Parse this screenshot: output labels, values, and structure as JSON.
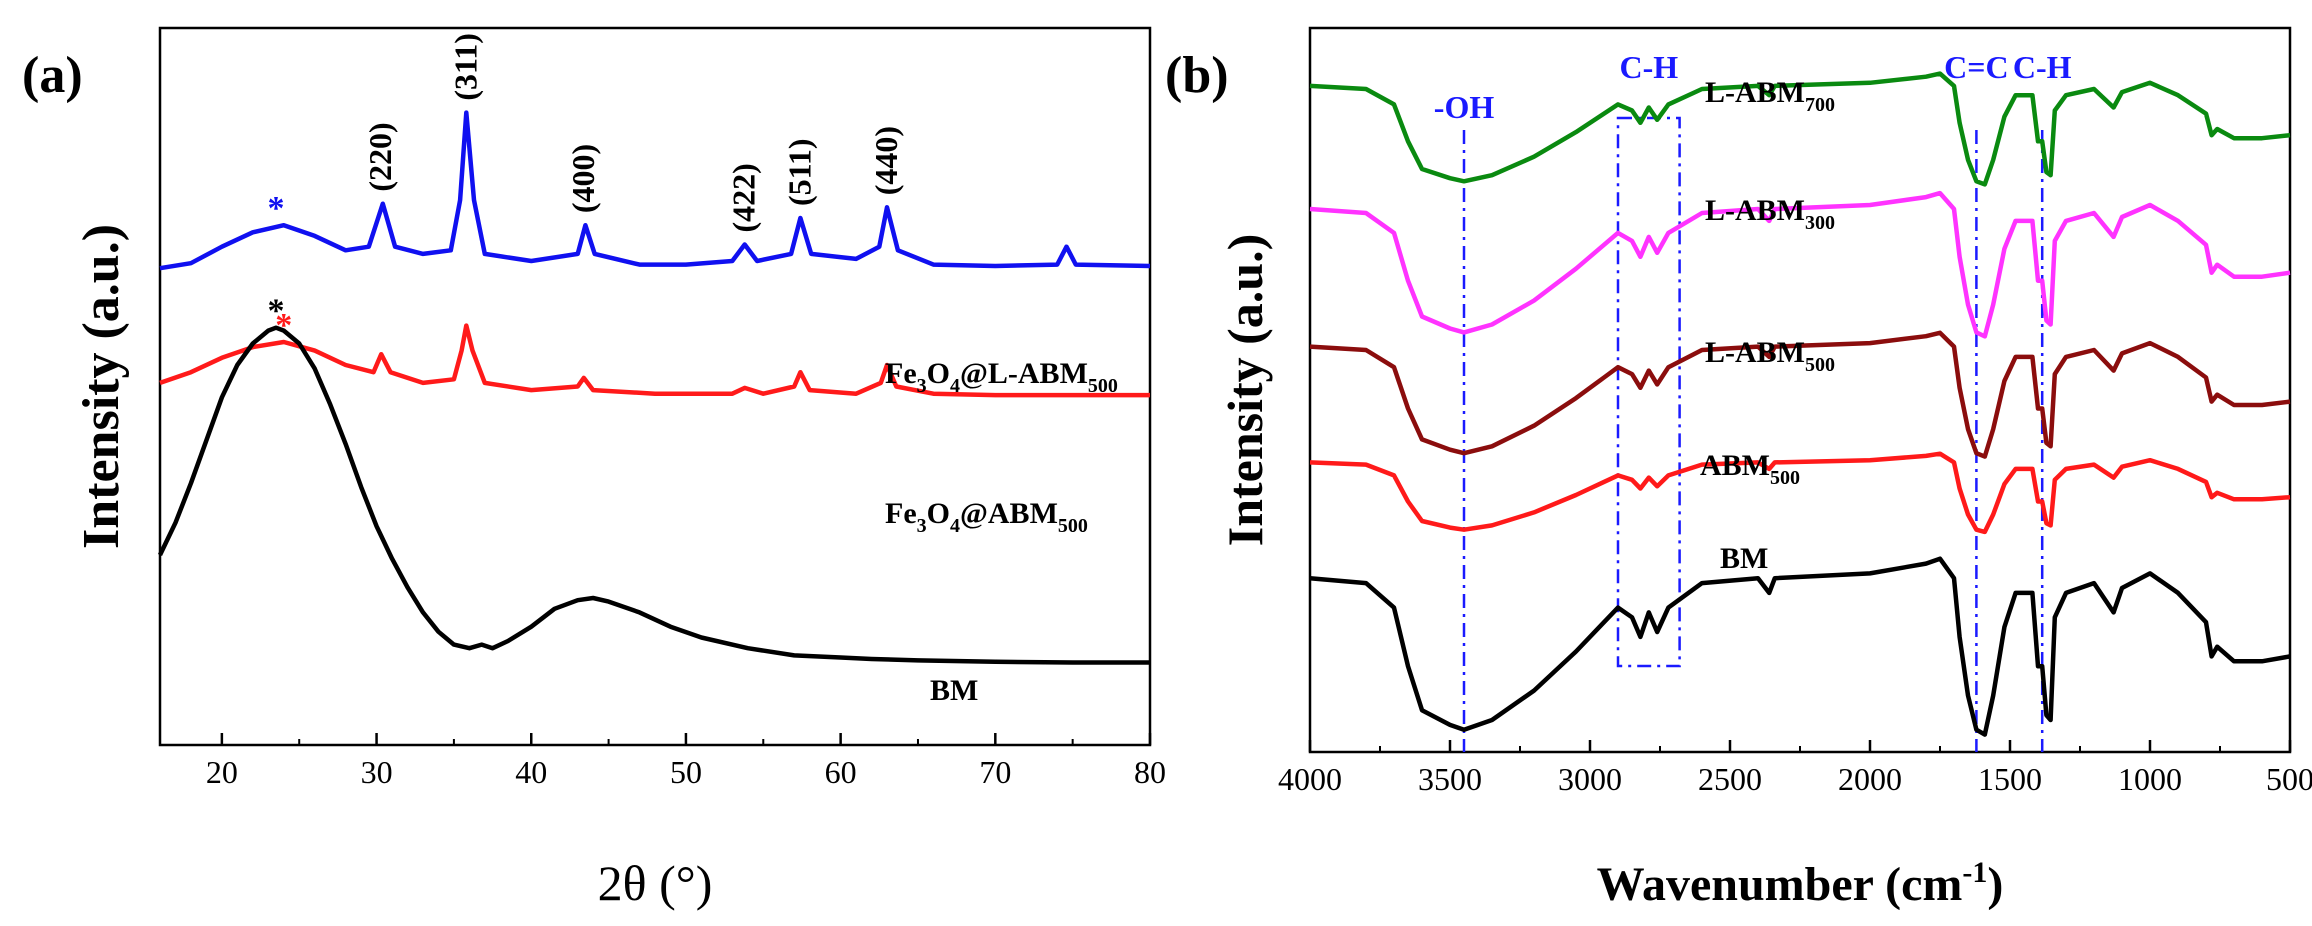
{
  "figure": {
    "panel_a_label": "(a)",
    "panel_b_label": "(b)"
  },
  "colors": {
    "blue": "#1010f0",
    "red": "#ff1a1a",
    "black": "#000000",
    "green": "#0a8a10",
    "magenta": "#ff33ff",
    "darkred": "#8b0d0d",
    "annot": "#1a1aff"
  },
  "chart_data": [
    {
      "type": "line",
      "panel": "(a)",
      "xlabel": "2θ (°)",
      "ylabel": "Intensity (a.u.)",
      "xlim": [
        16,
        80
      ],
      "ylim": [
        0,
        10
      ],
      "xticks": [
        20,
        30,
        40,
        50,
        60,
        70,
        80
      ],
      "peak_labels": [
        {
          "text": "(220)",
          "x": 30.3
        },
        {
          "text": "(311)",
          "x": 35.8
        },
        {
          "text": "(400)",
          "x": 43.4
        },
        {
          "text": "(422)",
          "x": 53.8
        },
        {
          "text": "(511)",
          "x": 57.4
        },
        {
          "text": "(440)",
          "x": 63.0
        }
      ],
      "series": [
        {
          "name": "Fe3O4@L-ABM500",
          "label_main": "Fe",
          "label_sub1": "3",
          "label_mid": "O",
          "label_sub2": "4",
          "label_tail": "@L-ABM",
          "label_sub3": "500",
          "color": "blue",
          "star_x": 23.5,
          "points": [
            [
              16,
              6.65
            ],
            [
              18,
              6.72
            ],
            [
              20,
              6.95
            ],
            [
              22,
              7.15
            ],
            [
              24,
              7.25
            ],
            [
              26,
              7.1
            ],
            [
              28,
              6.9
            ],
            [
              29.5,
              6.95
            ],
            [
              30.4,
              7.55
            ],
            [
              31.2,
              6.95
            ],
            [
              33,
              6.85
            ],
            [
              34.8,
              6.9
            ],
            [
              35.4,
              7.6
            ],
            [
              35.8,
              8.82
            ],
            [
              36.3,
              7.6
            ],
            [
              37,
              6.85
            ],
            [
              40,
              6.75
            ],
            [
              43,
              6.85
            ],
            [
              43.5,
              7.25
            ],
            [
              44.1,
              6.85
            ],
            [
              47,
              6.7
            ],
            [
              50,
              6.7
            ],
            [
              53,
              6.75
            ],
            [
              53.8,
              6.98
            ],
            [
              54.6,
              6.75
            ],
            [
              56.8,
              6.85
            ],
            [
              57.4,
              7.35
            ],
            [
              58.1,
              6.85
            ],
            [
              61,
              6.78
            ],
            [
              62.5,
              6.95
            ],
            [
              63,
              7.5
            ],
            [
              63.7,
              6.9
            ],
            [
              66,
              6.7
            ],
            [
              70,
              6.68
            ],
            [
              74,
              6.7
            ],
            [
              74.6,
              6.95
            ],
            [
              75.2,
              6.7
            ],
            [
              80,
              6.68
            ]
          ]
        },
        {
          "name": "Fe3O4@ABM500",
          "label_main": "Fe",
          "label_sub1": "3",
          "label_mid": "O",
          "label_sub2": "4",
          "label_tail": "@ABM",
          "label_sub3": "500",
          "color": "red",
          "star_x": 24,
          "points": [
            [
              16,
              5.05
            ],
            [
              18,
              5.2
            ],
            [
              20,
              5.4
            ],
            [
              22,
              5.55
            ],
            [
              24,
              5.62
            ],
            [
              26,
              5.5
            ],
            [
              28,
              5.3
            ],
            [
              29.8,
              5.2
            ],
            [
              30.3,
              5.45
            ],
            [
              30.9,
              5.2
            ],
            [
              33,
              5.05
            ],
            [
              35,
              5.1
            ],
            [
              35.5,
              5.5
            ],
            [
              35.8,
              5.85
            ],
            [
              36.2,
              5.5
            ],
            [
              37,
              5.05
            ],
            [
              40,
              4.95
            ],
            [
              43,
              5.0
            ],
            [
              43.4,
              5.12
            ],
            [
              44,
              4.95
            ],
            [
              48,
              4.9
            ],
            [
              53,
              4.9
            ],
            [
              53.8,
              4.98
            ],
            [
              55,
              4.9
            ],
            [
              57,
              5.0
            ],
            [
              57.4,
              5.2
            ],
            [
              58,
              4.95
            ],
            [
              61,
              4.9
            ],
            [
              62.6,
              5.05
            ],
            [
              63,
              5.3
            ],
            [
              63.6,
              5.0
            ],
            [
              66,
              4.9
            ],
            [
              70,
              4.88
            ],
            [
              80,
              4.88
            ]
          ]
        },
        {
          "name": "BM",
          "label_main": "BM",
          "color": "black",
          "star_x": 23.5,
          "points": [
            [
              16,
              2.65
            ],
            [
              17,
              3.1
            ],
            [
              18,
              3.65
            ],
            [
              19,
              4.25
            ],
            [
              20,
              4.85
            ],
            [
              21,
              5.3
            ],
            [
              22,
              5.6
            ],
            [
              23,
              5.78
            ],
            [
              23.5,
              5.82
            ],
            [
              24,
              5.78
            ],
            [
              25,
              5.6
            ],
            [
              26,
              5.25
            ],
            [
              27,
              4.75
            ],
            [
              28,
              4.2
            ],
            [
              29,
              3.6
            ],
            [
              30,
              3.05
            ],
            [
              31,
              2.6
            ],
            [
              32,
              2.2
            ],
            [
              33,
              1.85
            ],
            [
              34,
              1.58
            ],
            [
              35,
              1.4
            ],
            [
              36,
              1.35
            ],
            [
              36.8,
              1.4
            ],
            [
              37.5,
              1.35
            ],
            [
              38.5,
              1.45
            ],
            [
              40,
              1.65
            ],
            [
              41.5,
              1.9
            ],
            [
              43,
              2.02
            ],
            [
              44,
              2.05
            ],
            [
              45,
              2.0
            ],
            [
              47,
              1.85
            ],
            [
              49,
              1.65
            ],
            [
              51,
              1.5
            ],
            [
              54,
              1.35
            ],
            [
              57,
              1.25
            ],
            [
              60,
              1.22
            ],
            [
              62,
              1.2
            ],
            [
              65,
              1.18
            ],
            [
              70,
              1.16
            ],
            [
              75,
              1.15
            ],
            [
              80,
              1.15
            ]
          ]
        }
      ]
    },
    {
      "type": "line",
      "panel": "(b)",
      "xlabel_main": "Wavenumber (cm",
      "xlabel_sup": "-1",
      "xlabel_tail": ")",
      "ylabel": "Intensity (a.u.)",
      "xlim": [
        4000,
        500
      ],
      "ylim": [
        0,
        10
      ],
      "xticks": [
        4000,
        3500,
        3000,
        2500,
        2000,
        1500,
        1000,
        500
      ],
      "annotations": [
        {
          "text": "-OH",
          "x": 3450
        },
        {
          "text": "C-H",
          "x": 2790
        },
        {
          "text": "C=C",
          "x": 1620
        },
        {
          "text": "C-H",
          "x": 1385
        }
      ],
      "dashed_lines_x": [
        3450,
        1620,
        1385
      ],
      "ch_box": {
        "x_from": 2900,
        "x_to": 2680
      },
      "series": [
        {
          "name": "L-ABM700",
          "label_main": "L-ABM",
          "label_sub": "700",
          "color": "green",
          "offset": 9.2
        },
        {
          "name": "L-ABM300",
          "label_main": "L-ABM",
          "label_sub": "300",
          "color": "magenta",
          "offset": 7.5
        },
        {
          "name": "L-ABM500",
          "label_main": "L-ABM",
          "label_sub": "500",
          "color": "darkred",
          "offset": 5.6
        },
        {
          "name": "ABM500",
          "label_main": "ABM",
          "label_sub": "500",
          "color": "red",
          "offset": 4.0
        },
        {
          "name": "BM",
          "label_main": "BM",
          "color": "black",
          "offset": 2.4
        }
      ],
      "profile_points": [
        [
          4000,
          0.0
        ],
        [
          3800,
          -0.05
        ],
        [
          3700,
          -0.3
        ],
        [
          3650,
          -0.9
        ],
        [
          3600,
          -1.35
        ],
        [
          3500,
          -1.5
        ],
        [
          3450,
          -1.55
        ],
        [
          3350,
          -1.45
        ],
        [
          3200,
          -1.15
        ],
        [
          3050,
          -0.75
        ],
        [
          2950,
          -0.45
        ],
        [
          2900,
          -0.3
        ],
        [
          2850,
          -0.4
        ],
        [
          2820,
          -0.6
        ],
        [
          2790,
          -0.35
        ],
        [
          2760,
          -0.55
        ],
        [
          2720,
          -0.3
        ],
        [
          2600,
          -0.05
        ],
        [
          2400,
          0.0
        ],
        [
          2360,
          -0.15
        ],
        [
          2340,
          0.0
        ],
        [
          2000,
          0.05
        ],
        [
          1800,
          0.15
        ],
        [
          1750,
          0.2
        ],
        [
          1700,
          0.0
        ],
        [
          1680,
          -0.6
        ],
        [
          1650,
          -1.2
        ],
        [
          1620,
          -1.55
        ],
        [
          1590,
          -1.6
        ],
        [
          1560,
          -1.2
        ],
        [
          1520,
          -0.5
        ],
        [
          1480,
          -0.15
        ],
        [
          1420,
          -0.15
        ],
        [
          1400,
          -0.9
        ],
        [
          1385,
          -0.9
        ],
        [
          1370,
          -1.4
        ],
        [
          1355,
          -1.45
        ],
        [
          1340,
          -0.4
        ],
        [
          1300,
          -0.15
        ],
        [
          1200,
          -0.05
        ],
        [
          1130,
          -0.35
        ],
        [
          1100,
          -0.1
        ],
        [
          1000,
          0.05
        ],
        [
          900,
          -0.15
        ],
        [
          800,
          -0.45
        ],
        [
          780,
          -0.8
        ],
        [
          760,
          -0.7
        ],
        [
          700,
          -0.85
        ],
        [
          600,
          -0.85
        ],
        [
          500,
          -0.8
        ]
      ]
    }
  ]
}
